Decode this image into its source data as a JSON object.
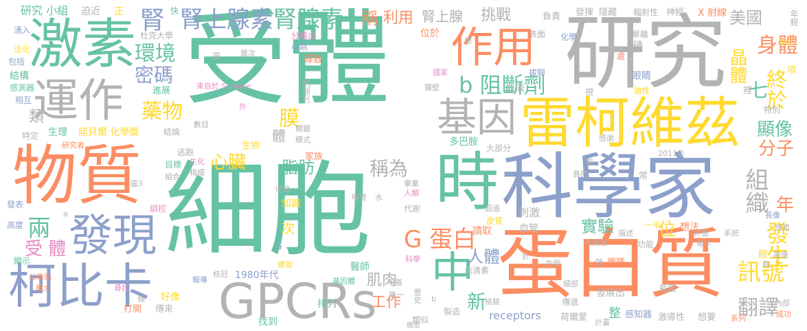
{
  "palette": {
    "green": "#66c2a5",
    "orange": "#fc8d62",
    "blue": "#8da0cb",
    "pink": "#e78ac3",
    "lime": "#a6d854",
    "yellow": "#ffd92f",
    "tan": "#e5c494",
    "gray": "#b3b3b3"
  },
  "words": [
    {
      "text": "受體",
      "color": "green"
    },
    {
      "text": "細胞",
      "color": "green"
    },
    {
      "text": "研究",
      "color": "gray"
    },
    {
      "text": "物質",
      "color": "orange"
    },
    {
      "text": "科學家",
      "color": "blue"
    },
    {
      "text": "蛋白質",
      "color": "orange"
    },
    {
      "text": "雷柯維茲",
      "color": "yellow"
    },
    {
      "text": "激素",
      "color": "green"
    },
    {
      "text": "時",
      "color": "green"
    },
    {
      "text": "GPCRs",
      "color": "gray"
    },
    {
      "text": "運作",
      "color": "gray"
    },
    {
      "text": "作用",
      "color": "orange"
    },
    {
      "text": "柯比卡",
      "color": "blue"
    },
    {
      "text": "發現",
      "color": "blue"
    },
    {
      "text": "基因",
      "color": "gray"
    },
    {
      "text": "中",
      "color": "green"
    },
    {
      "text": "腎上腺素",
      "color": "blue"
    },
    {
      "text": "腎腺素",
      "color": "green"
    },
    {
      "text": "訊號",
      "color": "yellow"
    },
    {
      "text": "組織",
      "color": "gray"
    },
    {
      "text": "身體",
      "color": "orange"
    },
    {
      "text": "G 蛋白",
      "color": "orange"
    },
    {
      "text": "腎",
      "color": "blue"
    },
    {
      "text": "環境",
      "color": "green"
    },
    {
      "text": "密碼",
      "color": "blue"
    },
    {
      "text": "藥物",
      "color": "yellow"
    },
    {
      "text": "b 阻斷劑",
      "color": "green"
    },
    {
      "text": "終於",
      "color": "yellow"
    },
    {
      "text": "晶體",
      "color": "yellow"
    },
    {
      "text": "七",
      "color": "green"
    },
    {
      "text": "顯像",
      "color": "green"
    },
    {
      "text": "分子",
      "color": "orange"
    },
    {
      "text": "發生",
      "color": "yellow"
    },
    {
      "text": "年",
      "color": "orange"
    },
    {
      "text": "翻譯",
      "color": "gray"
    },
    {
      "text": "兩",
      "color": "green"
    },
    {
      "text": "受 體",
      "color": "pink"
    },
    {
      "text": "心臟",
      "color": "yellow"
    },
    {
      "text": "脂肪",
      "color": "green"
    },
    {
      "text": "稱為",
      "color": "gray"
    },
    {
      "text": "膜",
      "color": "yellow"
    },
    {
      "text": "實驗",
      "color": "green"
    },
    {
      "text": "人體",
      "color": "blue"
    },
    {
      "text": "肌肉",
      "color": "gray"
    },
    {
      "text": "新",
      "color": "green"
    },
    {
      "text": "工作",
      "color": "orange"
    },
    {
      "text": "位",
      "color": "yellow"
    },
    {
      "text": "稱",
      "color": "orange"
    },
    {
      "text": "利用",
      "color": "orange"
    },
    {
      "text": "腎上腺",
      "color": "gray"
    },
    {
      "text": "挑戰",
      "color": "gray"
    },
    {
      "text": "美國",
      "color": "gray"
    },
    {
      "text": "研究 小組",
      "color": "green"
    },
    {
      "text": "迫近",
      "color": "gray"
    },
    {
      "text": "正",
      "color": "yellow"
    },
    {
      "text": "快",
      "color": "green"
    },
    {
      "text": "負責",
      "color": "gray"
    },
    {
      "text": "發揮",
      "color": "gray"
    },
    {
      "text": "隱藏",
      "color": "gray"
    },
    {
      "text": "輻射性",
      "color": "gray"
    },
    {
      "text": "神經",
      "color": "gray"
    },
    {
      "text": "X 射線",
      "color": "orange"
    },
    {
      "text": "年輕",
      "color": "gray"
    },
    {
      "text": "杜克大學",
      "color": "gray"
    },
    {
      "text": "分離出",
      "color": "pink"
    },
    {
      "text": "心跳",
      "color": "blue"
    },
    {
      "text": "位於",
      "color": "orange"
    },
    {
      "text": "導致",
      "color": "orange"
    },
    {
      "text": "表面",
      "color": "gray"
    },
    {
      "text": "化學",
      "color": "blue"
    },
    {
      "text": "單離",
      "color": "gray"
    },
    {
      "text": "湧入",
      "color": "blue"
    },
    {
      "text": "活化",
      "color": "yellow"
    },
    {
      "text": "包括",
      "color": "blue"
    },
    {
      "text": "結構",
      "color": "green"
    },
    {
      "text": "感測器",
      "color": "green"
    },
    {
      "text": "相互",
      "color": "blue"
    },
    {
      "text": "類",
      "color": "gray"
    },
    {
      "text": "特定",
      "color": "gray"
    },
    {
      "text": "生理",
      "color": "green"
    },
    {
      "text": "諾貝爾 化學獎",
      "color": "yellow"
    },
    {
      "text": "結論",
      "color": "gray"
    },
    {
      "text": "研究者",
      "color": "orange"
    },
    {
      "text": "進展",
      "color": "green"
    },
    {
      "text": "來自於 Science",
      "color": "pink"
    },
    {
      "text": "期刊",
      "color": "gray"
    },
    {
      "text": "約",
      "color": "gray"
    },
    {
      "text": "關鍵",
      "color": "gray"
    },
    {
      "text": "模式",
      "color": "gray"
    },
    {
      "text": "家族",
      "color": "orange"
    },
    {
      "text": "多巴胺",
      "color": "green"
    },
    {
      "text": "大部分",
      "color": "gray"
    },
    {
      "text": "血液",
      "color": "gray"
    },
    {
      "text": "膜壁",
      "color": "gray"
    },
    {
      "text": "國家",
      "color": "pink"
    },
    {
      "text": "拔腳",
      "color": "blue"
    },
    {
      "text": "眼睛",
      "color": "blue"
    },
    {
      "text": "油性",
      "color": "yellow"
    },
    {
      "text": "特別",
      "color": "gray"
    },
    {
      "text": "感謝",
      "color": "gray"
    },
    {
      "text": "2011年",
      "color": "gray"
    },
    {
      "text": "論文",
      "color": "yellow"
    },
    {
      "text": "項",
      "color": "yellow"
    },
    {
      "text": "逃跑",
      "color": "gray"
    },
    {
      "text": "生物",
      "color": "yellow"
    },
    {
      "text": "目標",
      "color": "green"
    },
    {
      "text": "組合",
      "color": "gray"
    },
    {
      "text": "生化",
      "color": "pink"
    },
    {
      "text": "精細",
      "color": "gray"
    },
    {
      "text": "圖3",
      "color": "gray"
    },
    {
      "text": "發表",
      "color": "blue"
    },
    {
      "text": "調控",
      "color": "pink"
    },
    {
      "text": "高度",
      "color": "blue"
    },
    {
      "text": "顯示",
      "color": "green"
    },
    {
      "text": "光線",
      "color": "gray"
    },
    {
      "text": "知識",
      "color": "yellow"
    },
    {
      "text": "畢業",
      "color": "gray"
    },
    {
      "text": "人類",
      "color": "pink"
    },
    {
      "text": "代謝",
      "color": "gray"
    },
    {
      "text": "嗅覺",
      "color": "gray"
    },
    {
      "text": "水",
      "color": "gray"
    },
    {
      "text": "刺激",
      "color": "gray"
    },
    {
      "text": "血管",
      "color": "gray"
    },
    {
      "text": "讀取",
      "color": "orange"
    },
    {
      "text": "皮質",
      "color": "yellow"
    },
    {
      "text": "超過",
      "color": "gray"
    },
    {
      "text": "描述",
      "color": "gray"
    },
    {
      "text": "功能",
      "color": "gray"
    },
    {
      "text": "一半",
      "color": "yellow"
    },
    {
      "text": "想法",
      "color": "orange"
    },
    {
      "text": "長像",
      "color": "blue"
    },
    {
      "text": "外面",
      "color": "gray"
    },
    {
      "text": "系統",
      "color": "gray"
    },
    {
      "text": "帶子",
      "color": "gray"
    },
    {
      "text": "布萊恩",
      "color": "gray"
    },
    {
      "text": "圖像",
      "color": "gray"
    },
    {
      "text": "公車站",
      "color": "orange"
    },
    {
      "text": "龐大",
      "color": "orange"
    },
    {
      "text": "螺旋",
      "color": "yellow"
    },
    {
      "text": "科學",
      "color": "pink"
    },
    {
      "text": "血清素",
      "color": "gray"
    },
    {
      "text": "針",
      "color": "gray"
    },
    {
      "text": "內側",
      "color": "gray"
    },
    {
      "text": "團隊",
      "color": "orange"
    },
    {
      "text": "做",
      "color": "gray"
    },
    {
      "text": "發展出",
      "color": "gray"
    },
    {
      "text": "醫師",
      "color": "green"
    },
    {
      "text": "桂冠",
      "color": "gray"
    },
    {
      "text": "1980年代",
      "color": "blue"
    },
    {
      "text": "報導",
      "color": "blue"
    },
    {
      "text": "尋找",
      "color": "pink"
    },
    {
      "text": "好像",
      "color": "yellow"
    },
    {
      "text": "打開",
      "color": "orange"
    },
    {
      "text": "傳來",
      "color": "gray"
    },
    {
      "text": "條",
      "color": "gray"
    },
    {
      "text": "基因體",
      "color": "green"
    },
    {
      "text": "甲基",
      "color": "gray"
    },
    {
      "text": "第一",
      "color": "gray"
    },
    {
      "text": "歷史",
      "color": "gray"
    },
    {
      "text": "排列",
      "color": "green"
    },
    {
      "text": "找到",
      "color": "green"
    },
    {
      "text": "類似",
      "color": "gray"
    },
    {
      "text": "製造",
      "color": "gray"
    },
    {
      "text": "檢驗",
      "color": "gray"
    },
    {
      "text": "receptors",
      "color": "blue"
    },
    {
      "text": "荷爾蒙",
      "color": "gray"
    },
    {
      "text": "整",
      "color": "green"
    },
    {
      "text": "感知器",
      "color": "blue"
    },
    {
      "text": "計畫",
      "color": "gray"
    },
    {
      "text": "激導性",
      "color": "gray"
    },
    {
      "text": "想要",
      "color": "gray"
    },
    {
      "text": "系列",
      "color": "orange"
    },
    {
      "text": "成功",
      "color": "orange"
    },
    {
      "text": "內部",
      "color": "gray"
    },
    {
      "text": "傳遞",
      "color": "gray"
    },
    {
      "text": "藍圖",
      "color": "gray"
    },
    {
      "text": "細部",
      "color": "gray"
    },
    {
      "text": "緻密",
      "color": "gray"
    },
    {
      "text": "感知",
      "color": "gray"
    },
    {
      "text": "裡",
      "color": "gray"
    },
    {
      "text": "視",
      "color": "gray"
    },
    {
      "text": "碘",
      "color": "gray"
    },
    {
      "text": "處",
      "color": "orange"
    },
    {
      "text": "愈",
      "color": "gray"
    },
    {
      "text": "常",
      "color": "gray"
    },
    {
      "text": "員的",
      "color": "gray"
    },
    {
      "text": "胺",
      "color": "yellow"
    },
    {
      "text": "具",
      "color": "gray"
    },
    {
      "text": "想",
      "color": "gray"
    },
    {
      "text": "數目",
      "color": "gray"
    },
    {
      "text": "外",
      "color": "pink"
    },
    {
      "text": "層次",
      "color": "gray"
    },
    {
      "text": "圖",
      "color": "gray"
    },
    {
      "text": "b",
      "color": "gray"
    },
    {
      "text": "a",
      "color": "gray"
    },
    {
      "text": "次",
      "color": "yellow"
    },
    {
      "text": "體",
      "color": "gray"
    },
    {
      "text": "G",
      "color": "blue"
    }
  ]
}
